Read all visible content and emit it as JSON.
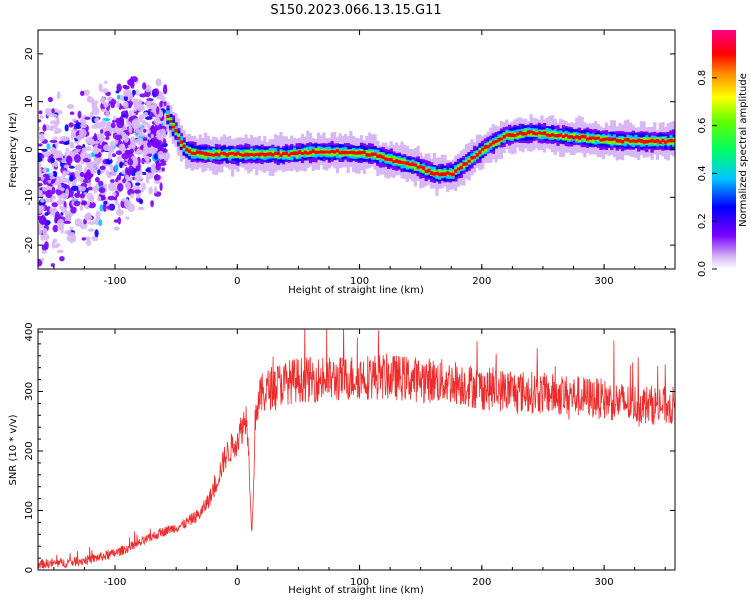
{
  "title": "S150.2023.066.13.15.G11",
  "colors": {
    "snr_line": "#ee2b2b",
    "frame": "#000000"
  },
  "chart_data": [
    {
      "type": "heatmap",
      "title": "",
      "xlabel": "Height of straight line (km)",
      "ylabel": "Frequency (Hz)",
      "xlim": [
        -163,
        358
      ],
      "ylim": [
        -25,
        25
      ],
      "x_ticks": [
        -100,
        0,
        100,
        200,
        300
      ],
      "y_ticks": [
        -20,
        -10,
        0,
        10,
        20
      ],
      "colorbar": {
        "label": "Normalized spectral amplitude",
        "range": [
          0,
          1
        ],
        "ticks": [
          "0.0",
          "0.2",
          "0.4",
          "0.6",
          "0.8"
        ],
        "colormap": "hsv-rainbow"
      },
      "ridge": {
        "x": [
          -58,
          -52,
          -45,
          -40,
          -30,
          -20,
          0,
          20,
          40,
          60,
          80,
          100,
          110,
          130,
          145,
          160,
          175,
          190,
          205,
          220,
          240,
          260,
          280,
          300,
          320,
          340,
          358
        ],
        "freq": [
          7,
          4,
          0.5,
          -0.5,
          -1,
          -1,
          -1,
          -1,
          -1,
          -0.5,
          -0.5,
          -0.8,
          -1,
          -2.5,
          -3.5,
          -5,
          -5,
          -2,
          1,
          3,
          3.5,
          3,
          2.5,
          2,
          1.8,
          1.7,
          1.8
        ]
      },
      "scatter_region": {
        "x": [
          -163,
          -58
        ],
        "freq": [
          -25,
          25
        ]
      }
    },
    {
      "type": "line",
      "title": "",
      "xlabel": "Height of straight line (km)",
      "ylabel": "SNR (10 * v/v)",
      "xlim": [
        -163,
        358
      ],
      "ylim": [
        0,
        405
      ],
      "x_ticks": [
        -100,
        0,
        100,
        200,
        300
      ],
      "y_ticks": [
        0,
        100,
        200,
        300,
        400
      ],
      "trend": {
        "x": [
          -163,
          -140,
          -120,
          -100,
          -80,
          -60,
          -45,
          -30,
          -20,
          -10,
          0,
          8,
          12,
          15,
          20,
          30,
          50,
          80,
          100,
          120,
          150,
          180,
          200,
          230,
          260,
          290,
          320,
          358
        ],
        "snr": [
          10,
          12,
          18,
          28,
          45,
          65,
          75,
          95,
          130,
          190,
          220,
          260,
          60,
          270,
          295,
          310,
          320,
          320,
          325,
          325,
          320,
          315,
          305,
          300,
          295,
          290,
          280,
          275
        ]
      }
    }
  ]
}
